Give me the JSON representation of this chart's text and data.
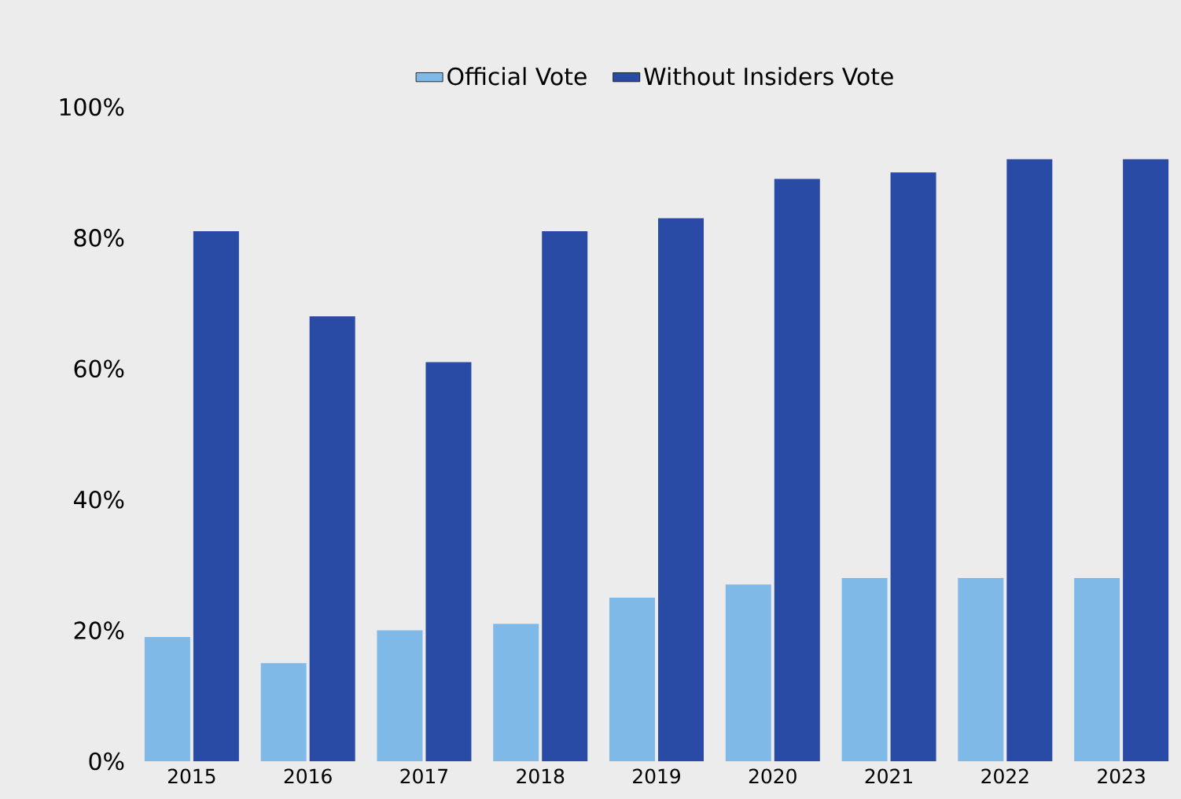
{
  "chart_data": {
    "type": "bar",
    "categories": [
      "2015",
      "2016",
      "2017",
      "2018",
      "2019",
      "2020",
      "2021",
      "2022",
      "2023"
    ],
    "series": [
      {
        "name": "Official Vote",
        "color": "#7fb9e8",
        "values": [
          19,
          15,
          20,
          21,
          25,
          27,
          28,
          28,
          28
        ]
      },
      {
        "name": "Without Insiders Vote",
        "color": "#2a4ba5",
        "values": [
          81,
          68,
          61,
          81,
          83,
          89,
          90,
          92,
          92
        ]
      }
    ],
    "ylim": [
      0,
      100
    ],
    "yticks": [
      {
        "value": 0,
        "label": "0%"
      },
      {
        "value": 20,
        "label": "20%"
      },
      {
        "value": 40,
        "label": "40%"
      },
      {
        "value": 60,
        "label": "60%"
      },
      {
        "value": 80,
        "label": "80%"
      },
      {
        "value": 100,
        "label": "100%"
      }
    ],
    "grid": false,
    "legend": "top"
  }
}
